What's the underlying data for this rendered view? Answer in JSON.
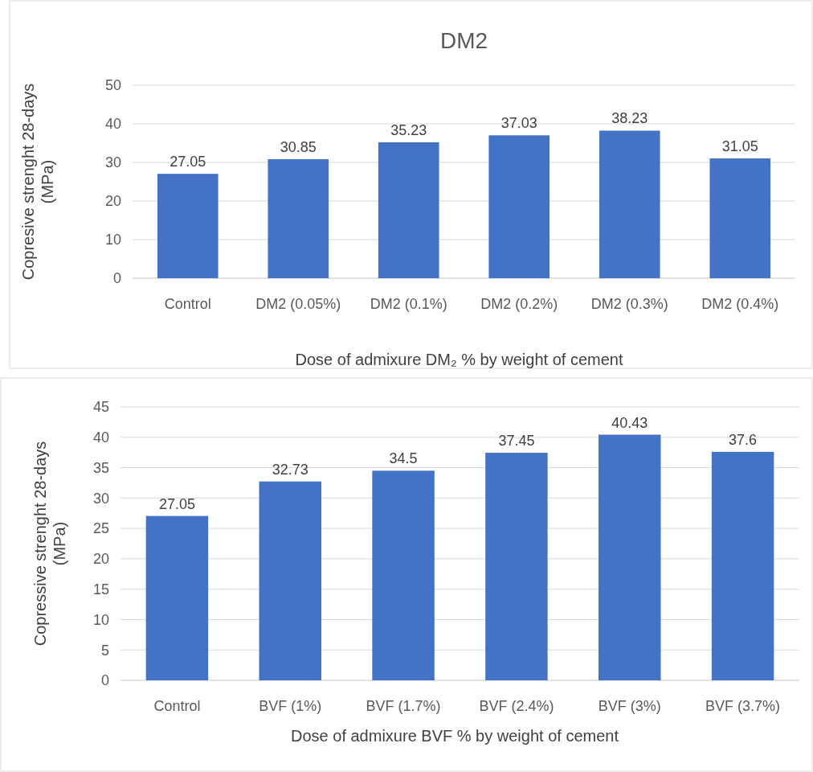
{
  "chart_data": [
    {
      "type": "bar",
      "title": "DM2",
      "xlabel": "Dose of admixure DM₂ % by weight of cement",
      "ylabel": "Copresive strenght 28-days\n(MPa)",
      "categories": [
        "Control",
        "DM2 (0.05%)",
        "DM2 (0.1%)",
        "DM2 (0.2%)",
        "DM2 (0.3%)",
        "DM2 (0.4%)"
      ],
      "values": [
        27.05,
        30.85,
        35.23,
        37.03,
        38.23,
        31.05
      ],
      "color": "#4472c4",
      "ylim": [
        0,
        50
      ],
      "yticks": [
        0,
        10,
        20,
        30,
        40,
        50
      ],
      "grid": "y",
      "data_labels": true
    },
    {
      "type": "bar",
      "xlabel": "Dose of admixure BVF % by weight of cement",
      "ylabel": "Copressive strenght 28-days\n(MPa)",
      "categories": [
        "Control",
        "BVF (1%)",
        "BVF (1.7%)",
        "BVF (2.4%)",
        "BVF (3%)",
        "BVF (3.7%)"
      ],
      "values": [
        27.05,
        32.73,
        34.5,
        37.45,
        40.43,
        37.6
      ],
      "color": "#4472c4",
      "ylim": [
        0,
        45
      ],
      "yticks": [
        0,
        5,
        10,
        15,
        20,
        25,
        30,
        35,
        40,
        45
      ],
      "grid": "y",
      "data_labels": true
    }
  ]
}
